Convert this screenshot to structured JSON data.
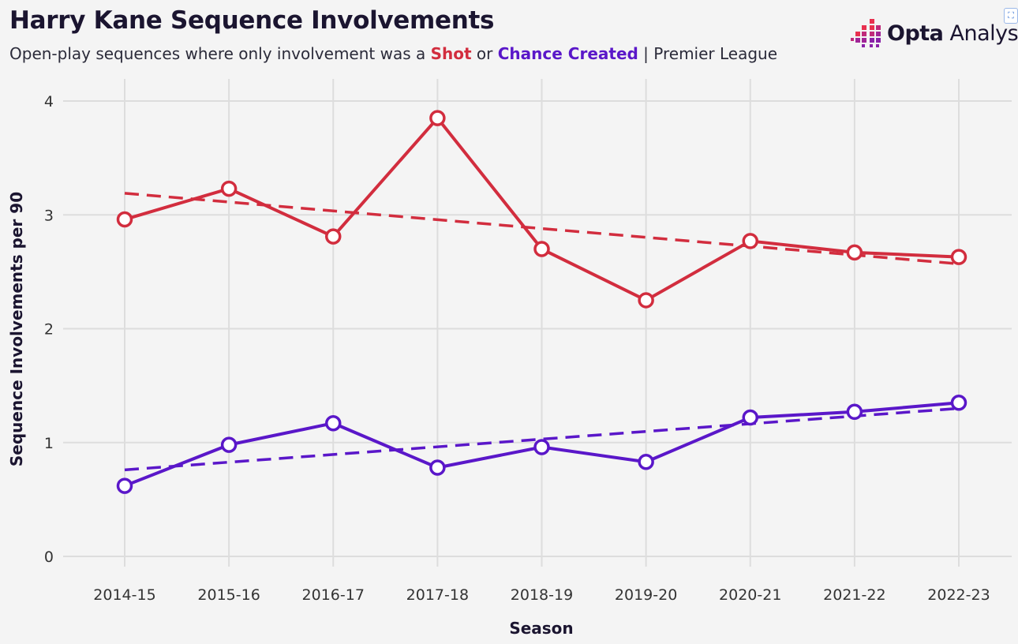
{
  "header": {
    "title": "Harry Kane Sequence Involvements",
    "subtitle_prefix": "Open-play sequences where only involvement was a ",
    "subtitle_shot": "Shot",
    "subtitle_or": " or ",
    "subtitle_chance": "Chance Created",
    "subtitle_suffix": " | Premier League"
  },
  "brand": {
    "name_bold": "Opta",
    "name_rest": " Analyst",
    "icon": "opta-analyst-logo-icon"
  },
  "colors": {
    "shot": "#d22d3e",
    "chance": "#5a17c9",
    "grid": "#dddddd",
    "background": "#f4f4f4"
  },
  "chart_data": {
    "type": "line",
    "title": "Harry Kane Sequence Involvements",
    "xlabel": "Season",
    "ylabel": "Sequence Involvements per 90",
    "categories": [
      "2014-15",
      "2015-16",
      "2016-17",
      "2017-18",
      "2018-19",
      "2019-20",
      "2020-21",
      "2021-22",
      "2022-23"
    ],
    "ylim": [
      0,
      4
    ],
    "yticks": [
      0,
      1,
      2,
      3,
      4
    ],
    "grid": true,
    "series": [
      {
        "name": "Shot",
        "color": "#d22d3e",
        "values": [
          2.96,
          3.23,
          2.81,
          3.85,
          2.7,
          2.25,
          2.77,
          2.67,
          2.63
        ],
        "trend": [
          3.19,
          2.57
        ]
      },
      {
        "name": "Chance Created",
        "color": "#5a17c9",
        "values": [
          0.62,
          0.98,
          1.17,
          0.78,
          0.96,
          0.83,
          1.22,
          1.27,
          1.35
        ],
        "trend": [
          0.76,
          1.3
        ]
      }
    ]
  }
}
